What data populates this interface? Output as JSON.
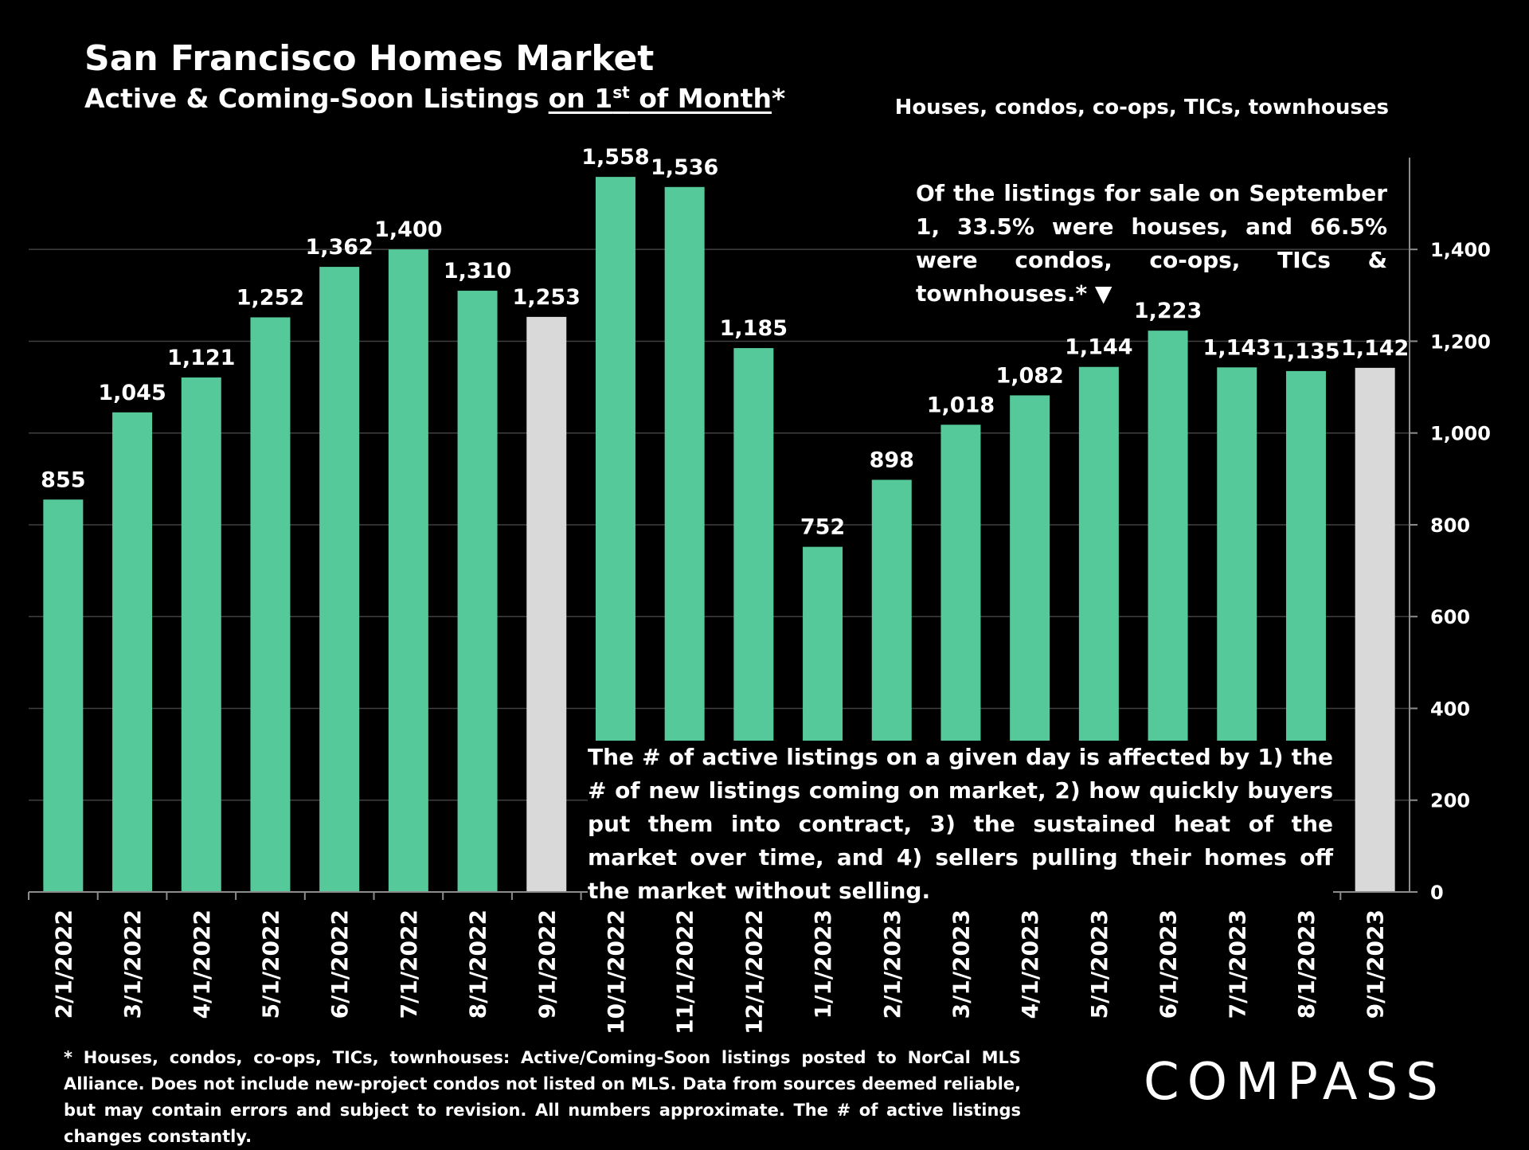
{
  "title": "San Francisco Homes Market",
  "subtitle": {
    "lead": "Active & Coming-Soon Listings ",
    "underlined_pre": "on 1",
    "superscript": "st",
    "underlined_post": " of Month",
    "suffix": "*"
  },
  "note_right": "Houses, condos, co-ops, TICs, townhouses",
  "annotation_top": "Of the listings for sale on September 1, 33.5% were houses, and 66.5% were condos, co-ops, TICs & townhouses.* ▼",
  "annotation_bottom": "The # of active listings on a given day is affected by 1) the # of new listings coming on market, 2) how quickly buyers put them into contract, 3) the sustained heat of the market over time, and 4) sellers pulling their homes off the market without selling.",
  "footnote": "* Houses, condos, co-ops, TICs, townhouses: Active/Coming-Soon listings posted to NorCal MLS Alliance. Does not include new-project condos not listed on MLS. Data from sources deemed reliable, but may contain errors and subject to revision. All numbers approximate. The # of active listings changes constantly.",
  "logo": "COMPASS",
  "colors": {
    "bar": "#56c99b",
    "bar_highlight": "#d9d9d9",
    "gridline": "#404040",
    "axis": "#8c8c8c",
    "background": "#000000",
    "text": "#ffffff"
  },
  "chart_data": {
    "type": "bar",
    "categories": [
      "2/1/2022",
      "3/1/2022",
      "4/1/2022",
      "5/1/2022",
      "6/1/2022",
      "7/1/2022",
      "8/1/2022",
      "9/1/2022",
      "10/1/2022",
      "11/1/2022",
      "12/1/2022",
      "1/1/2023",
      "2/1/2023",
      "3/1/2023",
      "4/1/2023",
      "5/1/2023",
      "6/1/2023",
      "7/1/2023",
      "8/1/2023",
      "9/1/2023"
    ],
    "values": [
      855,
      1045,
      1121,
      1252,
      1362,
      1400,
      1310,
      1253,
      1558,
      1536,
      1185,
      752,
      898,
      1018,
      1082,
      1144,
      1223,
      1143,
      1135,
      1142
    ],
    "data_labels": [
      "855",
      "1,045",
      "1,121",
      "1,252",
      "1,362",
      "1,400",
      "1,310",
      "1,253",
      "1,558",
      "1,536",
      "1,185",
      "752",
      "898",
      "1,018",
      "1,082",
      "1,144",
      "1,223",
      "1,143",
      "1,135",
      "1,142"
    ],
    "highlighted_categories": [
      "9/1/2022",
      "9/1/2023"
    ],
    "y_axis": {
      "position": "right",
      "ticks": [
        0,
        200,
        400,
        600,
        800,
        1000,
        1200,
        1400
      ],
      "tick_labels": [
        "0",
        "200",
        "400",
        "600",
        "800",
        "1,000",
        "1,200",
        "1,400"
      ],
      "ylim": [
        0,
        1600
      ]
    },
    "xlabel": "",
    "ylabel": "",
    "grid": true,
    "legend": "none"
  }
}
